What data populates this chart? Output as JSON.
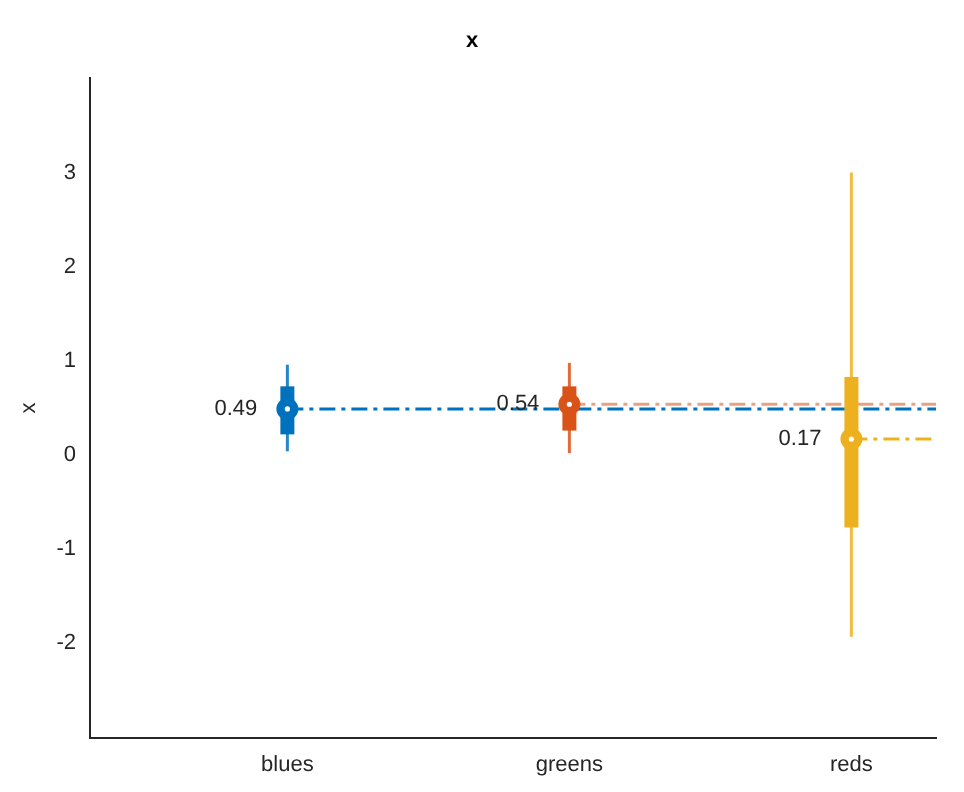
{
  "chart_data": {
    "type": "box",
    "title": "x",
    "ylabel": "x",
    "categories": [
      "blues",
      "greens",
      "reds"
    ],
    "colors": [
      "#0072bd",
      "#d95319",
      "#edb120"
    ],
    "boxes": [
      {
        "low": 0.04,
        "q1": 0.22,
        "median": 0.49,
        "q3": 0.73,
        "high": 0.96
      },
      {
        "low": 0.02,
        "q1": 0.26,
        "median": 0.54,
        "q3": 0.73,
        "high": 0.98
      },
      {
        "low": -1.93,
        "q1": -0.77,
        "median": 0.17,
        "q3": 0.83,
        "high": 3.0
      }
    ],
    "ylim": [
      -3,
      4
    ],
    "yticks": [
      -2,
      -1,
      0,
      1,
      2,
      3
    ],
    "value_labels": [
      "0.49",
      "0.54",
      "0.17"
    ],
    "ref_lines": [
      {
        "axis": "y",
        "value": 0.49,
        "color": "#0072bd",
        "line_style": "dashed"
      },
      {
        "axis": "y",
        "value": 0.54,
        "color": "#eba083",
        "line_style": "dashed"
      },
      {
        "axis": "y",
        "value": 0.17,
        "color": "#edb120",
        "line_style": "dashed"
      }
    ],
    "legend": false
  }
}
